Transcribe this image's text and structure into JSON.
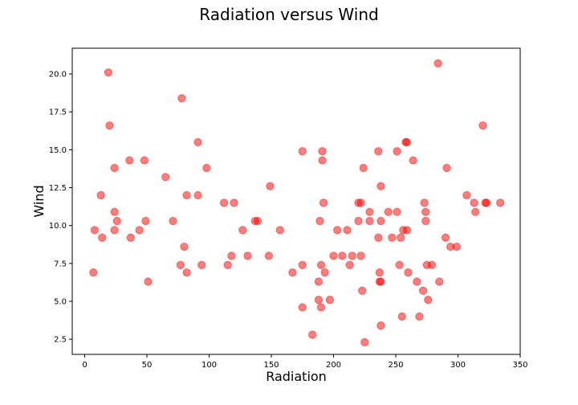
{
  "chart_data": {
    "type": "scatter",
    "title": "Radiation versus Wind",
    "xlabel": "Radiation",
    "ylabel": "Wind",
    "xlim": [
      -10,
      350
    ],
    "ylim": [
      1.5,
      21.7
    ],
    "xticks": [
      0,
      50,
      100,
      150,
      200,
      250,
      300,
      350
    ],
    "yticks": [
      2.5,
      5.0,
      7.5,
      10.0,
      12.5,
      15.0,
      17.5,
      20.0
    ],
    "ytick_labels": [
      "2.5",
      "5.0",
      "7.5",
      "10.0",
      "12.5",
      "15.0",
      "17.5",
      "20.0"
    ],
    "grid": false,
    "marker_color": "#ff0000",
    "marker_opacity": 0.5,
    "series": [
      {
        "points": [
          [
            7,
            6.9
          ],
          [
            8,
            9.7
          ],
          [
            13,
            12.0
          ],
          [
            14,
            9.2
          ],
          [
            19,
            20.1
          ],
          [
            20,
            16.6
          ],
          [
            24,
            13.8
          ],
          [
            24,
            10.9
          ],
          [
            24,
            9.7
          ],
          [
            26,
            10.3
          ],
          [
            36,
            14.3
          ],
          [
            37,
            9.2
          ],
          [
            44,
            9.7
          ],
          [
            48,
            14.3
          ],
          [
            49,
            10.3
          ],
          [
            51,
            6.3
          ],
          [
            65,
            13.2
          ],
          [
            71,
            10.3
          ],
          [
            77,
            7.4
          ],
          [
            78,
            18.4
          ],
          [
            80,
            8.6
          ],
          [
            82,
            12.0
          ],
          [
            82,
            6.9
          ],
          [
            91,
            15.5
          ],
          [
            91,
            12.0
          ],
          [
            94,
            7.4
          ],
          [
            98,
            13.8
          ],
          [
            112,
            11.5
          ],
          [
            115,
            7.4
          ],
          [
            118,
            8.0
          ],
          [
            120,
            11.5
          ],
          [
            127,
            9.7
          ],
          [
            131,
            8.0
          ],
          [
            137,
            10.3
          ],
          [
            139,
            10.3
          ],
          [
            148,
            8.0
          ],
          [
            149,
            12.6
          ],
          [
            157,
            9.7
          ],
          [
            167,
            6.9
          ],
          [
            175,
            14.9
          ],
          [
            175,
            7.4
          ],
          [
            175,
            4.6
          ],
          [
            183,
            2.8
          ],
          [
            188,
            5.1
          ],
          [
            188,
            6.3
          ],
          [
            189,
            10.3
          ],
          [
            190,
            7.4
          ],
          [
            190,
            4.6
          ],
          [
            191,
            14.3
          ],
          [
            191,
            14.9
          ],
          [
            192,
            11.5
          ],
          [
            193,
            6.9
          ],
          [
            197,
            5.1
          ],
          [
            200,
            8.0
          ],
          [
            203,
            9.7
          ],
          [
            207,
            8.0
          ],
          [
            211,
            9.7
          ],
          [
            213,
            7.4
          ],
          [
            215,
            8.0
          ],
          [
            220,
            10.3
          ],
          [
            220,
            11.5
          ],
          [
            222,
            11.5
          ],
          [
            222,
            8.0
          ],
          [
            223,
            5.7
          ],
          [
            224,
            13.8
          ],
          [
            225,
            2.3
          ],
          [
            229,
            10.9
          ],
          [
            229,
            10.3
          ],
          [
            236,
            14.9
          ],
          [
            236,
            9.2
          ],
          [
            237,
            6.9
          ],
          [
            237,
            6.3
          ],
          [
            238,
            6.3
          ],
          [
            238,
            10.3
          ],
          [
            238,
            12.6
          ],
          [
            238,
            3.4
          ],
          [
            244,
            10.9
          ],
          [
            247,
            9.2
          ],
          [
            251,
            10.9
          ],
          [
            251,
            14.9
          ],
          [
            253,
            7.4
          ],
          [
            254,
            9.2
          ],
          [
            255,
            4.0
          ],
          [
            256,
            9.7
          ],
          [
            258,
            15.5
          ],
          [
            259,
            15.5
          ],
          [
            259,
            9.7
          ],
          [
            260,
            6.9
          ],
          [
            264,
            14.3
          ],
          [
            267,
            6.3
          ],
          [
            269,
            4.0
          ],
          [
            272,
            5.7
          ],
          [
            273,
            11.5
          ],
          [
            274,
            10.9
          ],
          [
            274,
            10.3
          ],
          [
            275,
            7.4
          ],
          [
            276,
            5.1
          ],
          [
            279,
            7.4
          ],
          [
            284,
            20.7
          ],
          [
            285,
            6.3
          ],
          [
            290,
            9.2
          ],
          [
            291,
            13.8
          ],
          [
            294,
            8.6
          ],
          [
            299,
            8.6
          ],
          [
            307,
            12.0
          ],
          [
            313,
            11.5
          ],
          [
            314,
            10.9
          ],
          [
            320,
            16.6
          ],
          [
            322,
            11.5
          ],
          [
            323,
            11.5
          ],
          [
            334,
            11.5
          ]
        ]
      }
    ]
  }
}
